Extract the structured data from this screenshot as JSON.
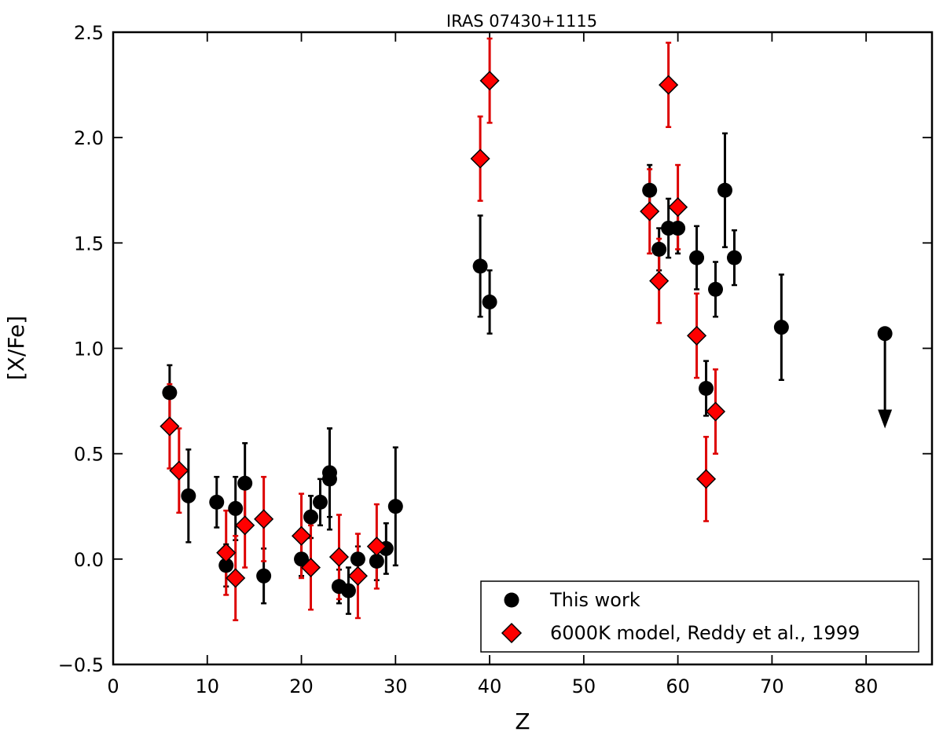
{
  "chart_data": {
    "type": "scatter",
    "title": "IRAS 07430+1115",
    "xlabel": "Z",
    "ylabel": "[X/Fe]",
    "xlim": [
      0,
      87
    ],
    "ylim": [
      -0.5,
      2.5
    ],
    "x_ticks": [
      0,
      10,
      20,
      30,
      40,
      50,
      60,
      70,
      80
    ],
    "y_ticks": [
      -0.5,
      0.0,
      0.5,
      1.0,
      1.5,
      2.0,
      2.5
    ],
    "x_tick_labels": [
      "0",
      "10",
      "20",
      "30",
      "40",
      "50",
      "60",
      "70",
      "80"
    ],
    "y_tick_labels": [
      "−0.5",
      "0.0",
      "0.5",
      "1.0",
      "1.5",
      "2.0",
      "2.5"
    ],
    "grid": false,
    "legend_position": "bottom-right",
    "series": [
      {
        "name": "This work",
        "marker": "circle",
        "color": "#000000",
        "points": [
          {
            "x": 6,
            "y": 0.79,
            "err": 0.13
          },
          {
            "x": 8,
            "y": 0.3,
            "err": 0.22
          },
          {
            "x": 11,
            "y": 0.27,
            "err": 0.12
          },
          {
            "x": 12,
            "y": -0.03,
            "err": 0.1
          },
          {
            "x": 13,
            "y": 0.24,
            "err": 0.15
          },
          {
            "x": 14,
            "y": 0.36,
            "err": 0.19
          },
          {
            "x": 16,
            "y": -0.08,
            "err": 0.13
          },
          {
            "x": 20,
            "y": 0.0,
            "err": 0.08
          },
          {
            "x": 21,
            "y": 0.2,
            "err": 0.1
          },
          {
            "x": 22,
            "y": 0.27,
            "err": 0.11
          },
          {
            "x": 23,
            "y": 0.38,
            "err": 0.24
          },
          {
            "x": 23,
            "y": 0.41,
            "err": 0.21
          },
          {
            "x": 24,
            "y": -0.13,
            "err": 0.08
          },
          {
            "x": 25,
            "y": -0.15,
            "err": 0.11
          },
          {
            "x": 26,
            "y": 0.0,
            "err": 0.06
          },
          {
            "x": 28,
            "y": -0.01,
            "err": 0.09
          },
          {
            "x": 29,
            "y": 0.05,
            "err": 0.12
          },
          {
            "x": 30,
            "y": 0.25,
            "err": 0.28
          },
          {
            "x": 39,
            "y": 1.39,
            "err": 0.24
          },
          {
            "x": 40,
            "y": 1.22,
            "err": 0.15
          },
          {
            "x": 57,
            "y": 1.75,
            "err": 0.12
          },
          {
            "x": 58,
            "y": 1.47,
            "err": 0.1
          },
          {
            "x": 59,
            "y": 1.57,
            "err": 0.14
          },
          {
            "x": 60,
            "y": 1.57,
            "err": 0.12
          },
          {
            "x": 62,
            "y": 1.43,
            "err": 0.15
          },
          {
            "x": 63,
            "y": 0.81,
            "err": 0.13
          },
          {
            "x": 64,
            "y": 1.28,
            "err": 0.13
          },
          {
            "x": 65,
            "y": 1.75,
            "err": 0.27
          },
          {
            "x": 66,
            "y": 1.43,
            "err": 0.13
          },
          {
            "x": 71,
            "y": 1.1,
            "err": 0.25
          }
        ],
        "upper_limits": [
          {
            "x": 82,
            "y": 1.07,
            "arrow_to": 0.62
          }
        ]
      },
      {
        "name": "6000K model, Reddy et al., 1999",
        "marker": "diamond",
        "color": "#ff0000",
        "error_color": "#dd0000",
        "points": [
          {
            "x": 6,
            "y": 0.63,
            "err": 0.2
          },
          {
            "x": 7,
            "y": 0.42,
            "err": 0.2
          },
          {
            "x": 12,
            "y": 0.03,
            "err": 0.2
          },
          {
            "x": 13,
            "y": -0.09,
            "err": 0.2
          },
          {
            "x": 14,
            "y": 0.16,
            "err": 0.2
          },
          {
            "x": 16,
            "y": 0.19,
            "err": 0.2
          },
          {
            "x": 20,
            "y": 0.11,
            "err": 0.2
          },
          {
            "x": 21,
            "y": -0.04,
            "err": 0.2
          },
          {
            "x": 24,
            "y": 0.01,
            "err": 0.2
          },
          {
            "x": 26,
            "y": -0.08,
            "err": 0.2
          },
          {
            "x": 28,
            "y": 0.06,
            "err": 0.2
          },
          {
            "x": 39,
            "y": 1.9,
            "err": 0.2
          },
          {
            "x": 40,
            "y": 2.27,
            "err": 0.2
          },
          {
            "x": 57,
            "y": 1.65,
            "err": 0.2
          },
          {
            "x": 58,
            "y": 1.32,
            "err": 0.2
          },
          {
            "x": 59,
            "y": 2.25,
            "err": 0.2
          },
          {
            "x": 60,
            "y": 1.67,
            "err": 0.2
          },
          {
            "x": 62,
            "y": 1.06,
            "err": 0.2
          },
          {
            "x": 63,
            "y": 0.38,
            "err": 0.2
          },
          {
            "x": 64,
            "y": 0.7,
            "err": 0.2
          }
        ]
      }
    ]
  }
}
